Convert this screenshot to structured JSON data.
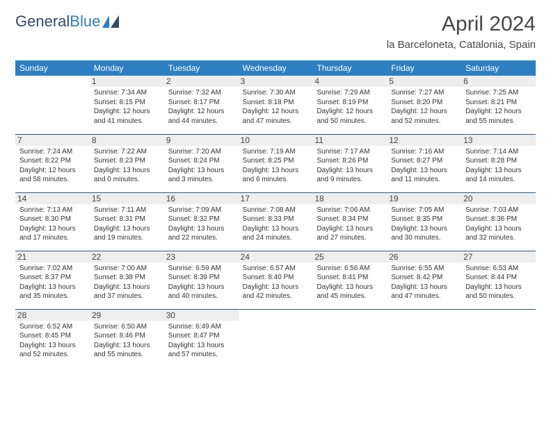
{
  "brand": {
    "part1": "General",
    "part2": "Blue"
  },
  "title": "April 2024",
  "subtitle": "la Barceloneta, Catalonia, Spain",
  "colors": {
    "header_bg": "#2d7fc1",
    "header_fg": "#ffffff",
    "daynum_bg": "#eeeeee",
    "cell_border": "#2d5a7f",
    "brand_dark": "#314a6b",
    "brand_light": "#2d7fc1",
    "title_color": "#464646",
    "text_color": "#333333",
    "bg": "#ffffff"
  },
  "weekdays": [
    "Sunday",
    "Monday",
    "Tuesday",
    "Wednesday",
    "Thursday",
    "Friday",
    "Saturday"
  ],
  "weeks": [
    [
      null,
      {
        "n": "1",
        "sr": "7:34 AM",
        "ss": "8:15 PM",
        "dl": "12 hours and 41 minutes."
      },
      {
        "n": "2",
        "sr": "7:32 AM",
        "ss": "8:17 PM",
        "dl": "12 hours and 44 minutes."
      },
      {
        "n": "3",
        "sr": "7:30 AM",
        "ss": "8:18 PM",
        "dl": "12 hours and 47 minutes."
      },
      {
        "n": "4",
        "sr": "7:29 AM",
        "ss": "8:19 PM",
        "dl": "12 hours and 50 minutes."
      },
      {
        "n": "5",
        "sr": "7:27 AM",
        "ss": "8:20 PM",
        "dl": "12 hours and 52 minutes."
      },
      {
        "n": "6",
        "sr": "7:25 AM",
        "ss": "8:21 PM",
        "dl": "12 hours and 55 minutes."
      }
    ],
    [
      {
        "n": "7",
        "sr": "7:24 AM",
        "ss": "8:22 PM",
        "dl": "12 hours and 58 minutes."
      },
      {
        "n": "8",
        "sr": "7:22 AM",
        "ss": "8:23 PM",
        "dl": "13 hours and 0 minutes."
      },
      {
        "n": "9",
        "sr": "7:20 AM",
        "ss": "8:24 PM",
        "dl": "13 hours and 3 minutes."
      },
      {
        "n": "10",
        "sr": "7:19 AM",
        "ss": "8:25 PM",
        "dl": "13 hours and 6 minutes."
      },
      {
        "n": "11",
        "sr": "7:17 AM",
        "ss": "8:26 PM",
        "dl": "13 hours and 9 minutes."
      },
      {
        "n": "12",
        "sr": "7:16 AM",
        "ss": "8:27 PM",
        "dl": "13 hours and 11 minutes."
      },
      {
        "n": "13",
        "sr": "7:14 AM",
        "ss": "8:28 PM",
        "dl": "13 hours and 14 minutes."
      }
    ],
    [
      {
        "n": "14",
        "sr": "7:13 AM",
        "ss": "8:30 PM",
        "dl": "13 hours and 17 minutes."
      },
      {
        "n": "15",
        "sr": "7:11 AM",
        "ss": "8:31 PM",
        "dl": "13 hours and 19 minutes."
      },
      {
        "n": "16",
        "sr": "7:09 AM",
        "ss": "8:32 PM",
        "dl": "13 hours and 22 minutes."
      },
      {
        "n": "17",
        "sr": "7:08 AM",
        "ss": "8:33 PM",
        "dl": "13 hours and 24 minutes."
      },
      {
        "n": "18",
        "sr": "7:06 AM",
        "ss": "8:34 PM",
        "dl": "13 hours and 27 minutes."
      },
      {
        "n": "19",
        "sr": "7:05 AM",
        "ss": "8:35 PM",
        "dl": "13 hours and 30 minutes."
      },
      {
        "n": "20",
        "sr": "7:03 AM",
        "ss": "8:36 PM",
        "dl": "13 hours and 32 minutes."
      }
    ],
    [
      {
        "n": "21",
        "sr": "7:02 AM",
        "ss": "8:37 PM",
        "dl": "13 hours and 35 minutes."
      },
      {
        "n": "22",
        "sr": "7:00 AM",
        "ss": "8:38 PM",
        "dl": "13 hours and 37 minutes."
      },
      {
        "n": "23",
        "sr": "6:59 AM",
        "ss": "8:39 PM",
        "dl": "13 hours and 40 minutes."
      },
      {
        "n": "24",
        "sr": "6:57 AM",
        "ss": "8:40 PM",
        "dl": "13 hours and 42 minutes."
      },
      {
        "n": "25",
        "sr": "6:56 AM",
        "ss": "8:41 PM",
        "dl": "13 hours and 45 minutes."
      },
      {
        "n": "26",
        "sr": "6:55 AM",
        "ss": "8:42 PM",
        "dl": "13 hours and 47 minutes."
      },
      {
        "n": "27",
        "sr": "6:53 AM",
        "ss": "8:44 PM",
        "dl": "13 hours and 50 minutes."
      }
    ],
    [
      {
        "n": "28",
        "sr": "6:52 AM",
        "ss": "8:45 PM",
        "dl": "13 hours and 52 minutes."
      },
      {
        "n": "29",
        "sr": "6:50 AM",
        "ss": "8:46 PM",
        "dl": "13 hours and 55 minutes."
      },
      {
        "n": "30",
        "sr": "6:49 AM",
        "ss": "8:47 PM",
        "dl": "13 hours and 57 minutes."
      },
      null,
      null,
      null,
      null
    ]
  ],
  "labels": {
    "sunrise": "Sunrise:",
    "sunset": "Sunset:",
    "daylight": "Daylight:"
  }
}
